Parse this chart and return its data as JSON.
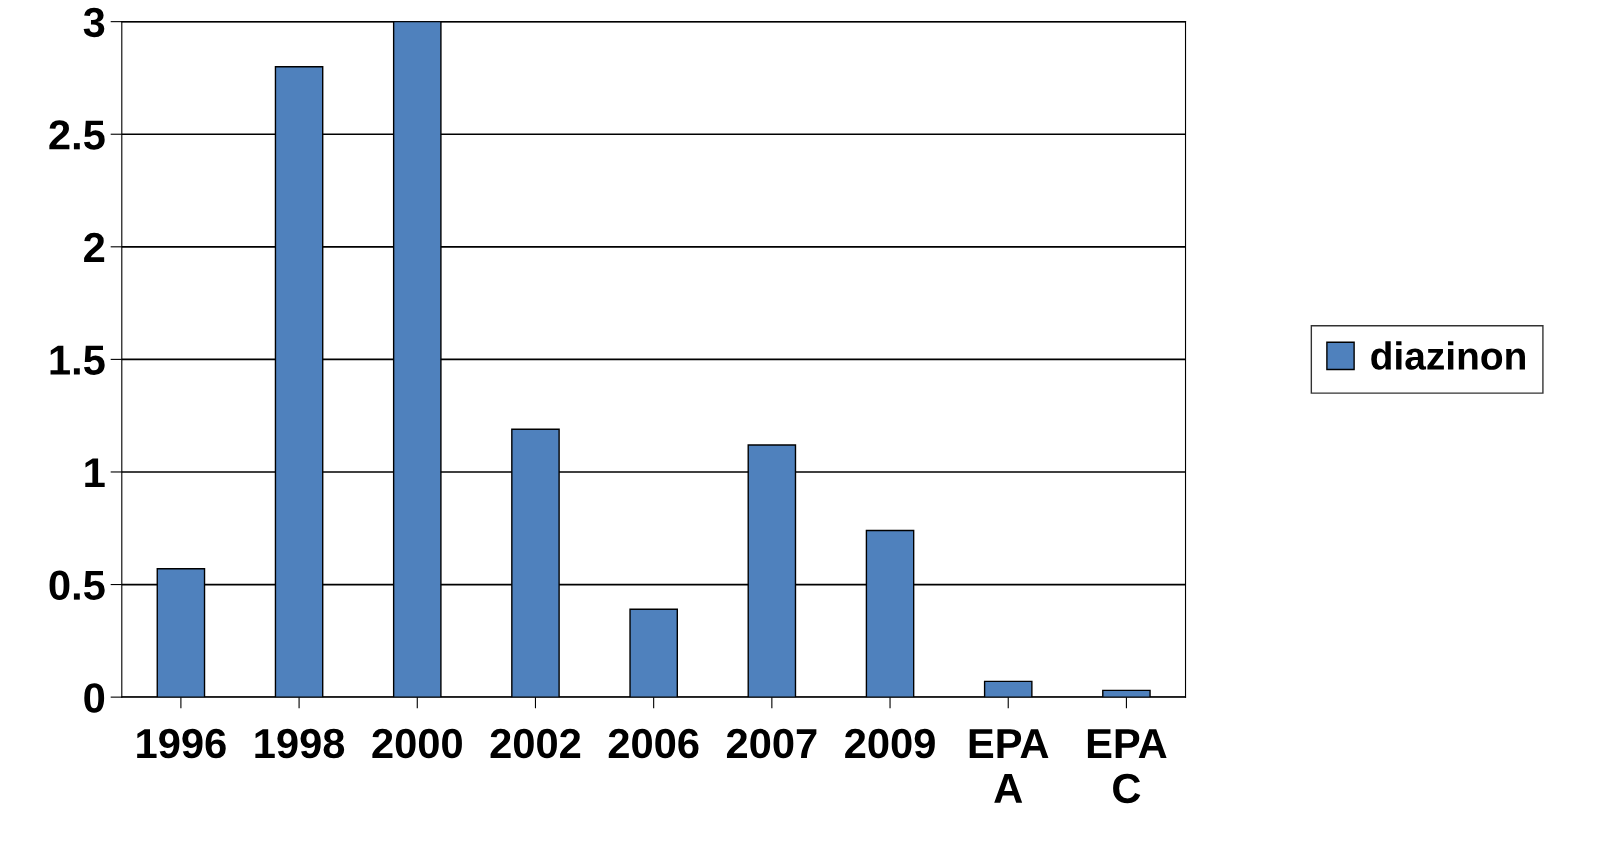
{
  "chart_data": {
    "type": "bar",
    "categories": [
      "1996",
      "1998",
      "2000",
      "2002",
      "2006",
      "2007",
      "2009",
      "EPA\nA",
      "EPA\nC"
    ],
    "series": [
      {
        "name": "diazinon",
        "color": "#4f81bd",
        "values": [
          0.57,
          2.8,
          3.0,
          1.19,
          0.39,
          1.12,
          0.74,
          0.07,
          0.03
        ]
      }
    ],
    "ylim": [
      0,
      3
    ],
    "yticks": [
      0,
      0.5,
      1,
      1.5,
      2,
      2.5,
      3
    ],
    "grid": "y",
    "legend": "right"
  }
}
